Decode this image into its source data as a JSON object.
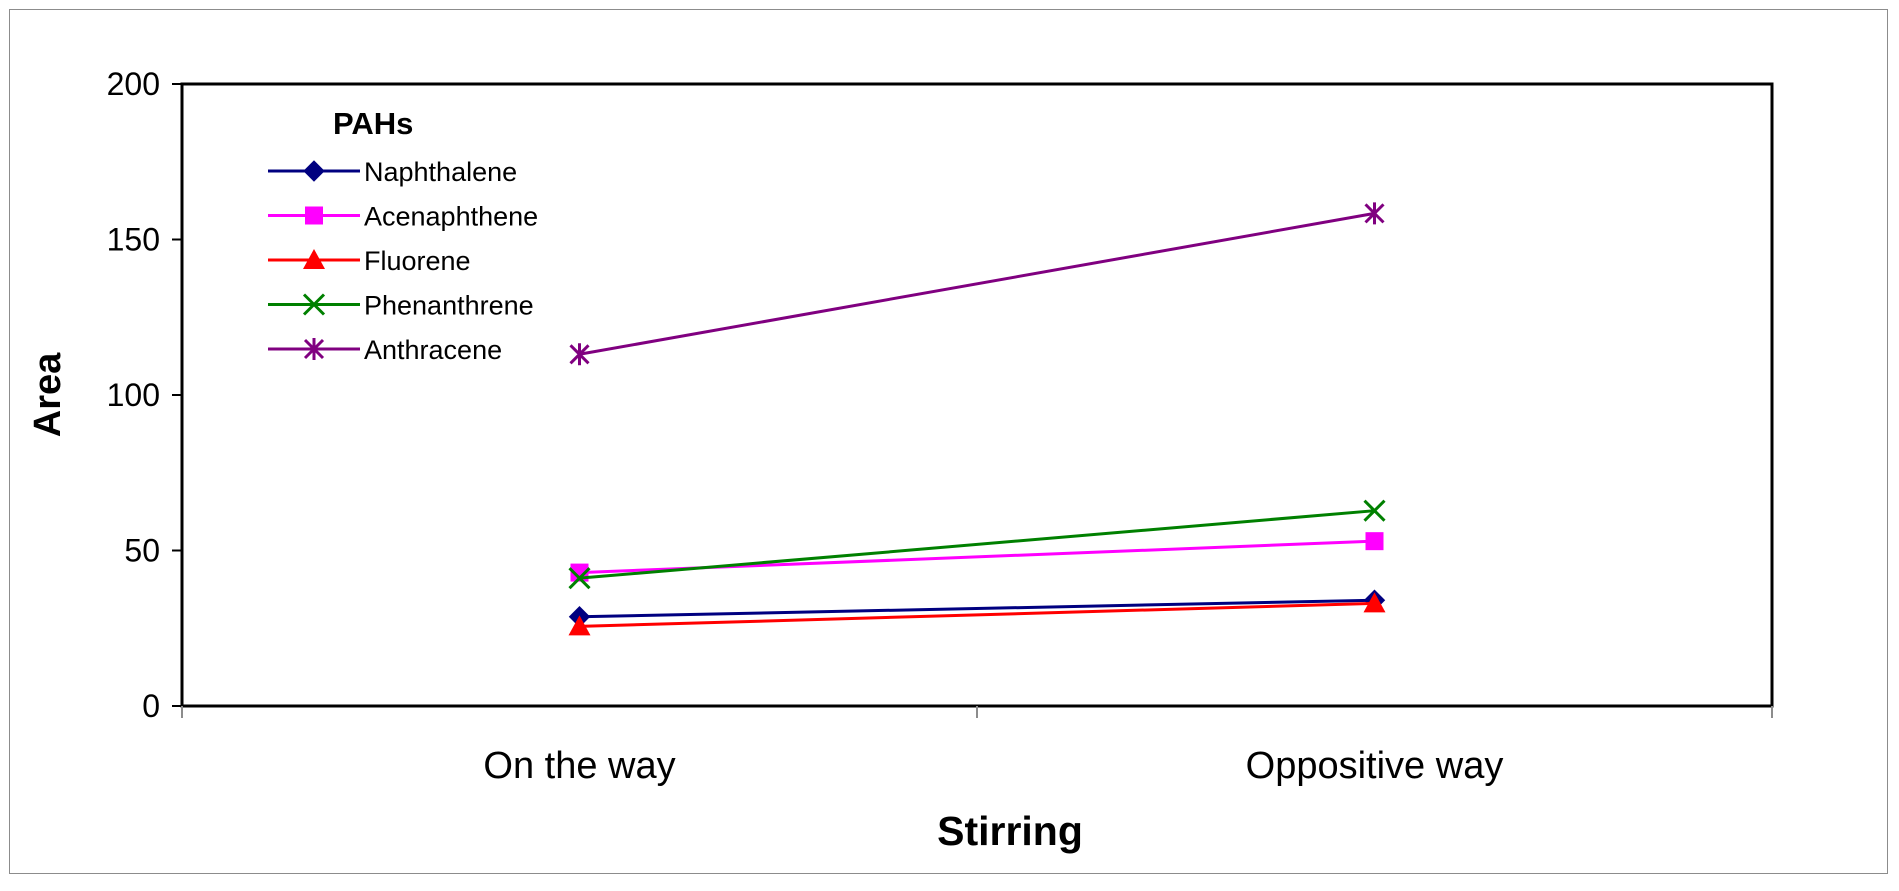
{
  "chart_data": {
    "type": "line",
    "xlabel": "Stirring",
    "ylabel": "Area",
    "ylim": [
      0,
      200
    ],
    "yticks": [
      0,
      50,
      100,
      150,
      200
    ],
    "categories": [
      "On the way",
      "Oppositive way"
    ],
    "legend_title": "PAHs",
    "legend_position": "top-left",
    "grid": false,
    "series": [
      {
        "name": "Naphthalene",
        "values": [
          28.7,
          34.0
        ],
        "color": "#000080",
        "marker": "diamond"
      },
      {
        "name": "Acenaphthene",
        "values": [
          42.9,
          53.0
        ],
        "color": "#ff00ff",
        "marker": "square"
      },
      {
        "name": "Fluorene",
        "values": [
          25.6,
          33.0
        ],
        "color": "#ff0000",
        "marker": "triangle"
      },
      {
        "name": "Phenanthrene",
        "values": [
          41.1,
          62.8
        ],
        "color": "#008000",
        "marker": "x"
      },
      {
        "name": "Anthracene",
        "values": [
          113.1,
          158.4
        ],
        "color": "#800080",
        "marker": "asterisk"
      }
    ]
  }
}
